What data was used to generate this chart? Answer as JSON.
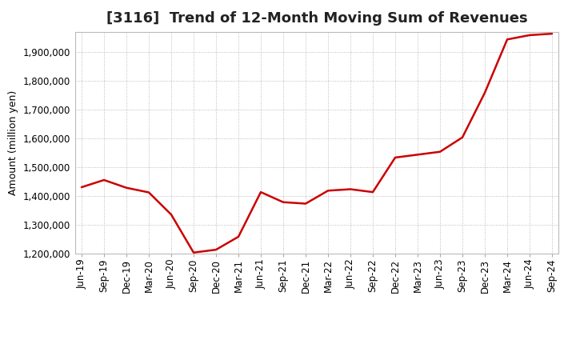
{
  "title": "[3116]  Trend of 12-Month Moving Sum of Revenues",
  "ylabel": "Amount (million yen)",
  "line_color": "#cc0000",
  "background_color": "#ffffff",
  "plot_bg_color": "#ffffff",
  "grid_color": "#999999",
  "ylim": [
    1200000,
    1970000
  ],
  "yticks": [
    1200000,
    1300000,
    1400000,
    1500000,
    1600000,
    1700000,
    1800000,
    1900000
  ],
  "x_labels": [
    "Jun-19",
    "Sep-19",
    "Dec-19",
    "Mar-20",
    "Jun-20",
    "Sep-20",
    "Dec-20",
    "Mar-21",
    "Jun-21",
    "Sep-21",
    "Dec-21",
    "Mar-22",
    "Jun-22",
    "Sep-22",
    "Dec-22",
    "Mar-23",
    "Jun-23",
    "Sep-23",
    "Dec-23",
    "Mar-24",
    "Jun-24",
    "Sep-24"
  ],
  "values": [
    1430000,
    1455000,
    1428000,
    1412000,
    1335000,
    1203000,
    1213000,
    1258000,
    1413000,
    1378000,
    1373000,
    1418000,
    1423000,
    1413000,
    1533000,
    1543000,
    1553000,
    1603000,
    1758000,
    1943000,
    1958000,
    1963000
  ],
  "title_fontsize": 13,
  "ylabel_fontsize": 9,
  "tick_fontsize": 8.5
}
